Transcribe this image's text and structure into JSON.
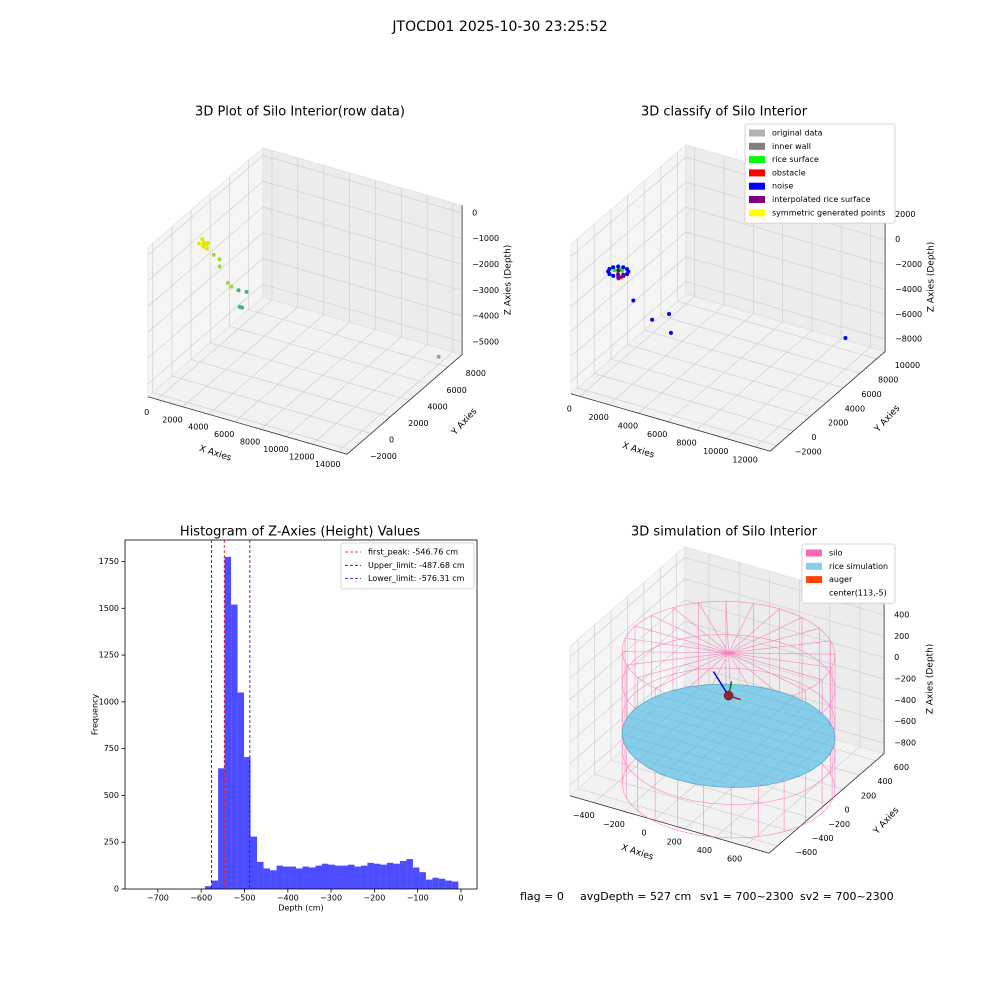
{
  "title": "JTOCD01 2025-10-30 23:25:52",
  "chart_data": [
    {
      "type": "scatter3d",
      "title": "3D Plot of Silo Interior(row data)",
      "xlabel": "X Axies",
      "ylabel": "Y Axies",
      "zlabel": "Z Axies (Depth)",
      "xlim": [
        -700,
        14700
      ],
      "ylim": [
        -2500,
        9500
      ],
      "zlim": [
        -5500,
        300
      ],
      "xticks": [
        0,
        2000,
        4000,
        6000,
        8000,
        10000,
        12000,
        14000
      ],
      "yticks": [
        {
          "value": -2000,
          "label": "−2000"
        },
        0,
        2000,
        4000,
        6000,
        8000
      ],
      "zticks": [
        {
          "value": -5000,
          "label": "−5000"
        },
        {
          "value": -4000,
          "label": "−4000"
        },
        {
          "value": -3000,
          "label": "−3000"
        },
        {
          "value": -2000,
          "label": "−2000"
        },
        {
          "value": -1000,
          "label": "−1000"
        },
        0
      ],
      "grid": true,
      "series": [
        {
          "color": "#e5e600",
          "x": [
            300,
            500,
            700,
            400,
            600,
            500,
            350,
            650
          ],
          "y": [
            1500,
            1700,
            1900,
            1800,
            1600,
            2000,
            1750,
            1850
          ],
          "z": [
            -700,
            -800,
            -750,
            -900,
            -650,
            -850,
            -600,
            -950
          ]
        },
        {
          "color": "#a5d640",
          "x": [
            1200,
            1500,
            1800,
            2000,
            2200
          ],
          "y": [
            1800,
            2000,
            1600,
            2200,
            2300
          ],
          "z": [
            -1100,
            -1300,
            -1400,
            -2200,
            -2350
          ]
        },
        {
          "color": "#3fb67c",
          "x": [
            2600,
            3000,
            2400,
            2500
          ],
          "y": [
            2500,
            2800,
            2900,
            3000
          ],
          "z": [
            -2500,
            -2600,
            -3300,
            -3350
          ]
        },
        {
          "color": "#8f9fb4",
          "x": [
            14000
          ],
          "y": [
            8000
          ],
          "z": [
            -5200
          ]
        }
      ]
    },
    {
      "type": "scatter3d",
      "title": "3D classify of Silo Interior",
      "xlabel": "X Axies",
      "ylabel": "Y Axies",
      "zlabel": "Z Axies (Depth)",
      "xlim": [
        -600,
        13000
      ],
      "ylim": [
        -2800,
        11000
      ],
      "zlim": [
        -9000,
        3000
      ],
      "xticks": [
        0,
        2000,
        4000,
        6000,
        8000,
        10000,
        12000
      ],
      "yticks": [
        {
          "value": -2000,
          "label": "−2000"
        },
        0,
        2000,
        4000,
        6000,
        8000,
        10000
      ],
      "zticks": [
        {
          "value": -8000,
          "label": "−8000"
        },
        {
          "value": -6000,
          "label": "−6000"
        },
        {
          "value": -4000,
          "label": "−4000"
        },
        {
          "value": -2000,
          "label": "−2000"
        },
        0,
        2000
      ],
      "grid": true,
      "series": [
        {
          "name": "original data",
          "color": "#b3b3b3",
          "x": [],
          "y": [],
          "z": []
        },
        {
          "name": "inner wall",
          "color": "#808080",
          "x": [],
          "y": [],
          "z": []
        },
        {
          "name": "rice surface",
          "color": "#00ff00",
          "x": [
            -100,
            100,
            -300,
            0
          ],
          "y": [
            2000,
            2100,
            1900,
            2300
          ],
          "z": [
            -1700,
            -1700,
            -1700,
            -1700
          ]
        },
        {
          "name": "obstacle",
          "color": "#ff0000",
          "x": [
            300,
            200
          ],
          "y": [
            1600,
            1500
          ],
          "z": [
            -1900,
            -1950
          ]
        },
        {
          "name": "noise",
          "color": "#0000ff",
          "x": [
            500,
            420,
            200,
            -100,
            -400,
            -620,
            -700,
            -620,
            -400,
            -100,
            200,
            420,
            1500,
            2500,
            2800,
            3500,
            12000
          ],
          "y": [
            2000,
            2300,
            2520,
            2600,
            2520,
            2300,
            2000,
            1700,
            1480,
            1400,
            1480,
            1700,
            1000,
            1500,
            3000,
            2000,
            8000
          ],
          "z": [
            -1800,
            -1800,
            -1800,
            -1800,
            -1800,
            -1800,
            -1800,
            -1800,
            -1800,
            -1800,
            -1800,
            -1800,
            -3000,
            -4500,
            -4800,
            -5500,
            -6500
          ]
        },
        {
          "name": "interpolated rice surface",
          "color": "#800080",
          "x": [
            0,
            -200,
            300
          ],
          "y": [
            1800,
            2200,
            1900
          ],
          "z": [
            -1850,
            -1850,
            -1850
          ]
        },
        {
          "name": "symmetric generated points",
          "color": "#ffff00",
          "x": [],
          "y": [],
          "z": []
        }
      ]
    },
    {
      "type": "histogram",
      "title": "Histogram of Z-Axies (Height) Values",
      "xlabel": "Depth (cm)",
      "ylabel": "Frequency",
      "color": "#4d4dff",
      "xlim": [
        -776,
        37
      ],
      "ylim": [
        0,
        1865
      ],
      "xticks": [
        {
          "value": -700,
          "label": "−700"
        },
        {
          "value": -600,
          "label": "−600"
        },
        {
          "value": -500,
          "label": "−500"
        },
        {
          "value": -400,
          "label": "−400"
        },
        {
          "value": -300,
          "label": "−300"
        },
        {
          "value": -200,
          "label": "−200"
        },
        {
          "value": -100,
          "label": "−100"
        },
        0
      ],
      "yticks": [
        0,
        250,
        500,
        750,
        1000,
        1250,
        1500,
        1750
      ],
      "bins": [
        -591,
        -576,
        -561,
        -546,
        -531,
        -516,
        -501,
        -486,
        -471,
        -456,
        -441,
        -426,
        -411,
        -396,
        -381,
        -366,
        -351,
        -336,
        -321,
        -306,
        -291,
        -276,
        -261,
        -246,
        -231,
        -216,
        -201,
        -186,
        -171,
        -156,
        -141,
        -126,
        -111,
        -96,
        -81,
        -66,
        -51,
        -36,
        -21,
        -6
      ],
      "counts": [
        15,
        45,
        645,
        1775,
        1520,
        1050,
        705,
        280,
        145,
        110,
        100,
        125,
        120,
        120,
        110,
        120,
        115,
        125,
        135,
        130,
        125,
        125,
        130,
        120,
        125,
        140,
        135,
        130,
        140,
        135,
        150,
        160,
        115,
        90,
        50,
        60,
        55,
        45,
        40
      ],
      "lines": [
        {
          "label": "first_peak: -546.76 cm",
          "value": -546.76,
          "color": "#ff0000"
        },
        {
          "label": "Upper_limit: -487.68 cm",
          "value": -487.68,
          "color": "#0000ff"
        },
        {
          "label": "Lower_limit: -576.31 cm",
          "value": -576.31,
          "color": "#0000ff"
        }
      ]
    },
    {
      "type": "silo3d",
      "title": "3D simulation of Silo Interior",
      "xlabel": "X Axies",
      "ylabel": "Y Axies",
      "zlabel": "Z Axies (Depth)",
      "xlim": [
        -560,
        760
      ],
      "ylim": [
        -700,
        700
      ],
      "zlim": [
        -900,
        500
      ],
      "xticks": [
        {
          "value": -400,
          "label": "−400"
        },
        {
          "value": -200,
          "label": "−200"
        },
        0,
        200,
        400,
        600
      ],
      "yticks": [
        {
          "value": -600,
          "label": "−600"
        },
        {
          "value": -400,
          "label": "−400"
        },
        {
          "value": -200,
          "label": "−200"
        },
        0,
        200,
        400,
        600
      ],
      "zticks": [
        {
          "value": -800,
          "label": "−800"
        },
        {
          "value": -600,
          "label": "−600"
        },
        {
          "value": -400,
          "label": "−400"
        },
        {
          "value": -200,
          "label": "−200"
        },
        0,
        200,
        400
      ],
      "grid": true,
      "silo": {
        "name": "silo",
        "color": "#ff69b4",
        "center_x": 113,
        "center_y": -5,
        "radius": 620,
        "z_bottom": -1000,
        "z_top": 250
      },
      "rice": {
        "name": "rice simulation",
        "color": "#87ceeb",
        "z": -527,
        "radius": 620
      },
      "auger": {
        "name": "auger",
        "color": "#ff4500",
        "x": 113,
        "y": -5,
        "z": -150
      },
      "center": {
        "name": "center(113,-5)",
        "color": "#ffffff"
      }
    }
  ],
  "footer": [
    "flag = 0",
    "avgDepth = 527 cm",
    "sv1 = 700~2300",
    "sv2 = 700~2300"
  ]
}
